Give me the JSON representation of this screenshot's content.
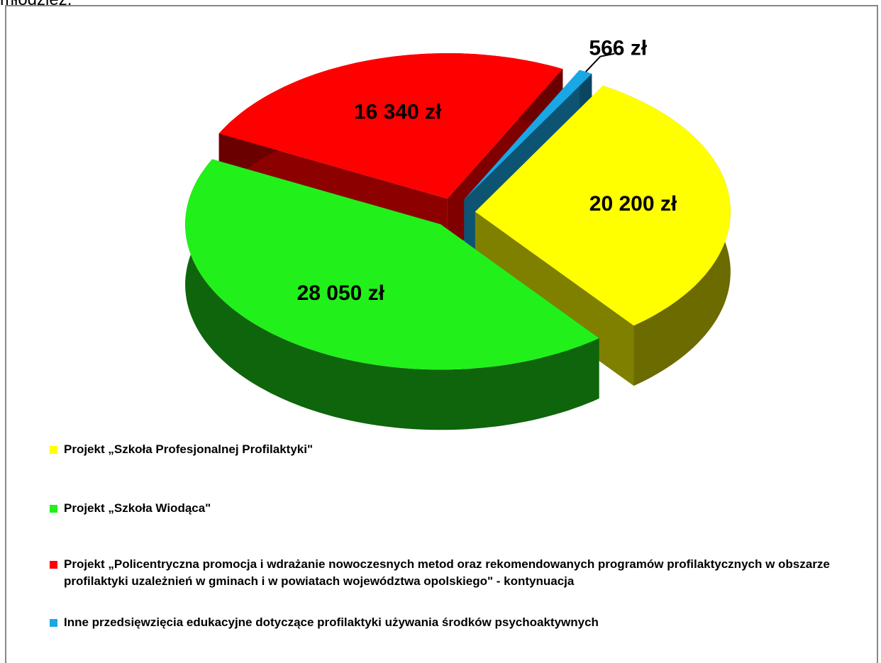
{
  "chart_data": {
    "type": "pie3d",
    "title": "młodzież.",
    "categories": [
      "Projekt „Szkoła Profesjonalnej Profilaktyki\"",
      "Projekt „Szkoła Wiodąca\"",
      "Projekt „Policentryczna promocja i wdrażanie nowoczesnych metod oraz rekomendowanych programów profilaktycznych w obszarze profilaktyki uzależnień w gminach i w powiatach województwa opolskiego\" - kontynuacja",
      "Inne przedsięwzięcia edukacyjne dotyczące profilaktyki używania środków psychoaktywnych"
    ],
    "values": [
      20200,
      28050,
      16340,
      566
    ],
    "value_labels": [
      "20 200 zł",
      "28 050 zł",
      "16 340 zł",
      "566 zł"
    ],
    "colors": [
      "#ffff00",
      "#22f01a",
      "#ff0000",
      "#1aa7e6"
    ],
    "legend": "bottom"
  }
}
